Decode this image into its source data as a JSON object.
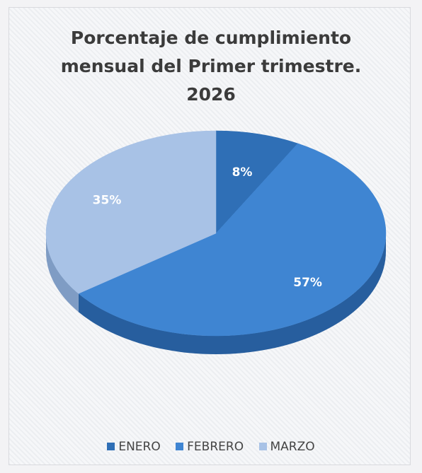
{
  "chart_data": {
    "type": "pie",
    "title_lines": [
      "Porcentaje de cumplimiento",
      "mensual del Primer trimestre.",
      "2026"
    ],
    "categories": [
      "ENERO",
      "FEBRERO",
      "MARZO"
    ],
    "values": [
      8,
      57,
      35
    ],
    "labels": [
      "8%",
      "57%",
      "35%"
    ],
    "colors": [
      "#2f6fb6",
      "#3f85d2",
      "#a8c2e6"
    ],
    "side_colors": [
      "#1f4f8a",
      "#275e9e",
      "#7f9cc4"
    ],
    "legend_position": "bottom",
    "style": "3d"
  }
}
